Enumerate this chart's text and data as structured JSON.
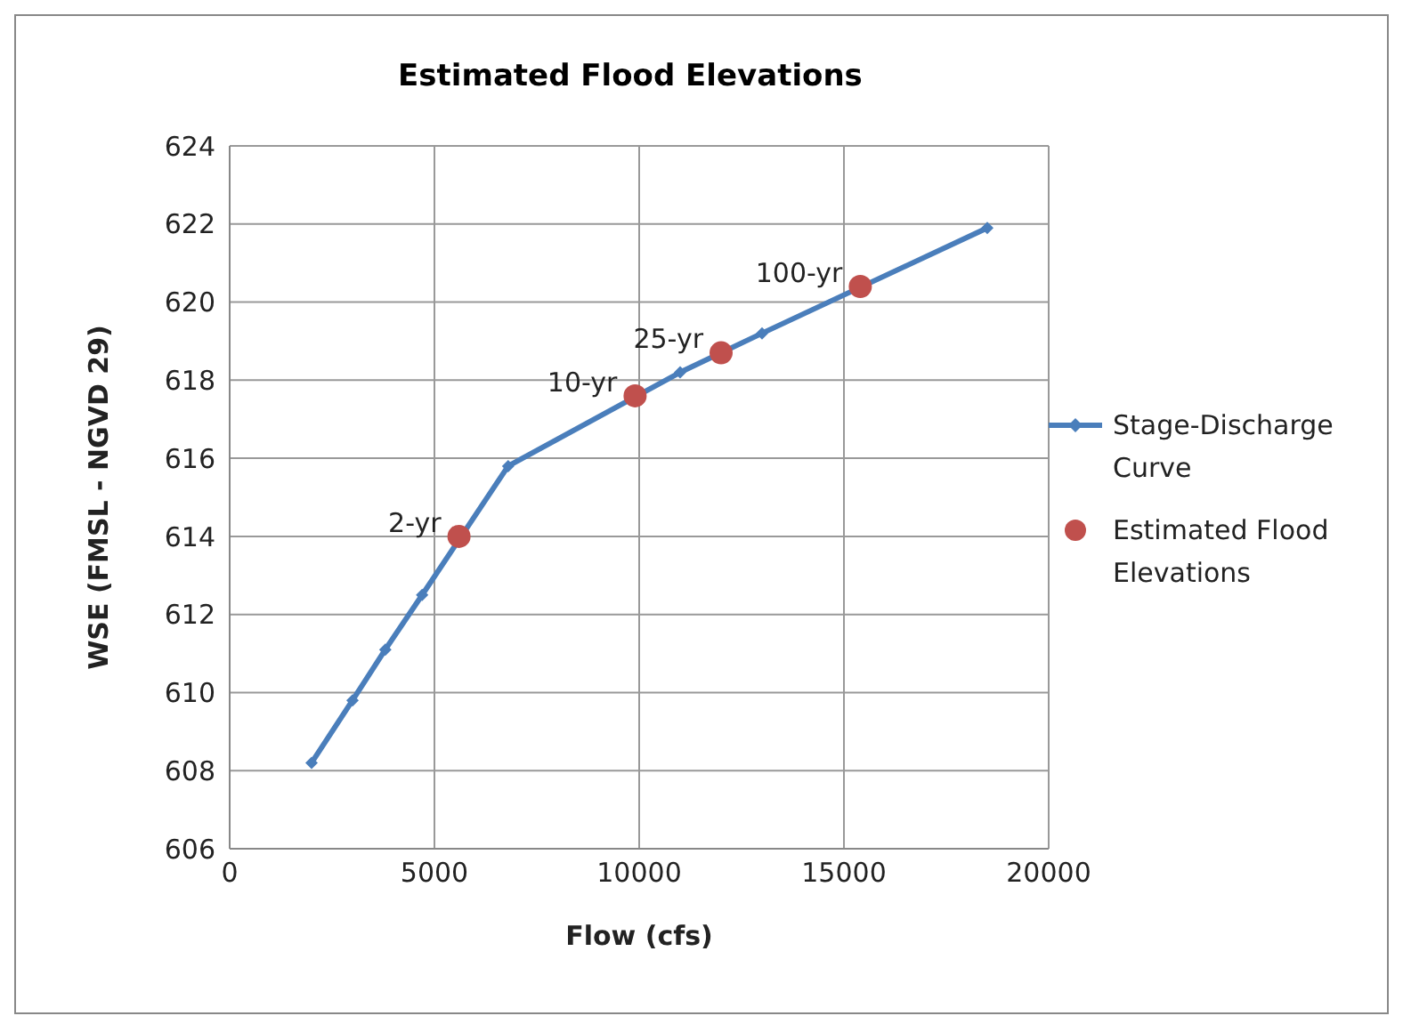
{
  "chart_data": {
    "type": "line",
    "title": "Estimated Flood  Elevations",
    "xlabel": "Flow (cfs)",
    "ylabel": "WSE (FMSL - NGVD 29)",
    "series": [
      {
        "name": "Stage-Discharge Curve",
        "color": "#4a7ebb",
        "marker": "diamond",
        "x": [
          2000,
          3000,
          3800,
          4700,
          6800,
          11000,
          13000,
          18500
        ],
        "values": [
          608.2,
          609.8,
          611.1,
          612.5,
          615.8,
          618.2,
          619.2,
          621.9
        ]
      },
      {
        "name": "Estimated Flood Elevations",
        "type": "scatter",
        "color": "#c0504d",
        "marker": "circle",
        "x": [
          5600,
          9900,
          12000,
          15400
        ],
        "values": [
          614,
          617.6,
          618.7,
          620.4
        ]
      }
    ],
    "annotations": [
      {
        "text": "2-yr",
        "x": 5600,
        "y": 614
      },
      {
        "text": "10-yr",
        "x": 9900,
        "y": 617.6
      },
      {
        "text": "25-yr",
        "x": 12000,
        "y": 618.7
      },
      {
        "text": "100-yr",
        "x": 15400,
        "y": 620.4
      }
    ],
    "xlim": [
      0,
      20000
    ],
    "xticks": [
      0,
      5000,
      10000,
      15000,
      20000
    ],
    "ylim": [
      606,
      624
    ],
    "yticks": [
      606,
      608,
      610,
      612,
      614,
      616,
      618,
      620,
      622,
      624
    ],
    "grid": true,
    "legend": "right"
  }
}
